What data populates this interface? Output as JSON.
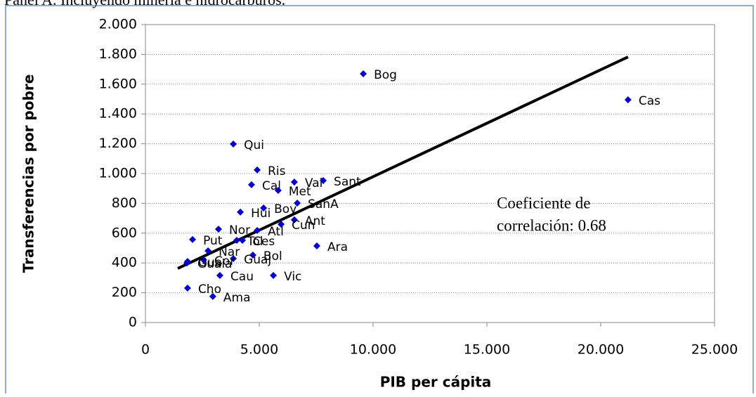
{
  "chart_data": {
    "type": "scatter",
    "title": "Panel A. Incluyendo minería e hidrocarburos.",
    "x_label": "PIB per cápita",
    "y_label": "Transferencias por pobre",
    "annotation": [
      "Coeficiente de",
      "correlación: 0.68"
    ],
    "xlim": [
      0,
      25000
    ],
    "ylim": [
      0,
      2000
    ],
    "xticks": [
      0,
      {
        "value": 5000,
        "label": "5.000"
      },
      {
        "value": 10000,
        "label": "10.000"
      },
      {
        "value": 15000,
        "label": "15.000"
      },
      {
        "value": 20000,
        "label": "20.000"
      },
      {
        "value": 25000,
        "label": "25.000"
      }
    ],
    "yticks": [
      0,
      200,
      400,
      600,
      800,
      {
        "value": 1000,
        "label": "1.000"
      },
      {
        "value": 1200,
        "label": "1.200"
      },
      {
        "value": 1400,
        "label": "1.400"
      },
      {
        "value": 1600,
        "label": "1.600"
      },
      {
        "value": 1800,
        "label": "1.800"
      },
      {
        "value": 2000,
        "label": "2.000"
      }
    ],
    "grid": true,
    "series": [
      {
        "color": "#0000cc",
        "labels": [
          "Bog",
          "Cas",
          "Qui",
          "Ris",
          "Cal",
          "Val",
          "Sant",
          "Met",
          "SanA",
          "Hui",
          "Boy",
          "Ant",
          "Cun",
          "Atl",
          "Nor",
          "Ara",
          "Put",
          "Ces",
          "Tol",
          "Nar",
          "Bol",
          "Guaj",
          "Vic",
          "Cau",
          "Cho",
          "Ama",
          "Gua",
          "Cor",
          "Guaia"
        ],
        "x": [
          9570,
          21200,
          3860,
          4910,
          4660,
          6540,
          7810,
          5830,
          6670,
          4170,
          5190,
          6540,
          5960,
          4910,
          3210,
          7530,
          2070,
          4260,
          4010,
          2750,
          4720,
          3860,
          5620,
          3270,
          1850,
          2960,
          1850,
          2560,
          1820
        ],
        "values": [
          1670,
          1495,
          1198,
          1024,
          925,
          943,
          953,
          887,
          802,
          741,
          769,
          689,
          660,
          618,
          627,
          514,
          557,
          552,
          552,
          481,
          453,
          429,
          316,
          316,
          231,
          175,
          410,
          420,
          400
        ]
      }
    ],
    "trendline": {
      "color": "#000000",
      "x": [
        1420,
        21200
      ],
      "y": [
        363,
        1783
      ]
    }
  }
}
